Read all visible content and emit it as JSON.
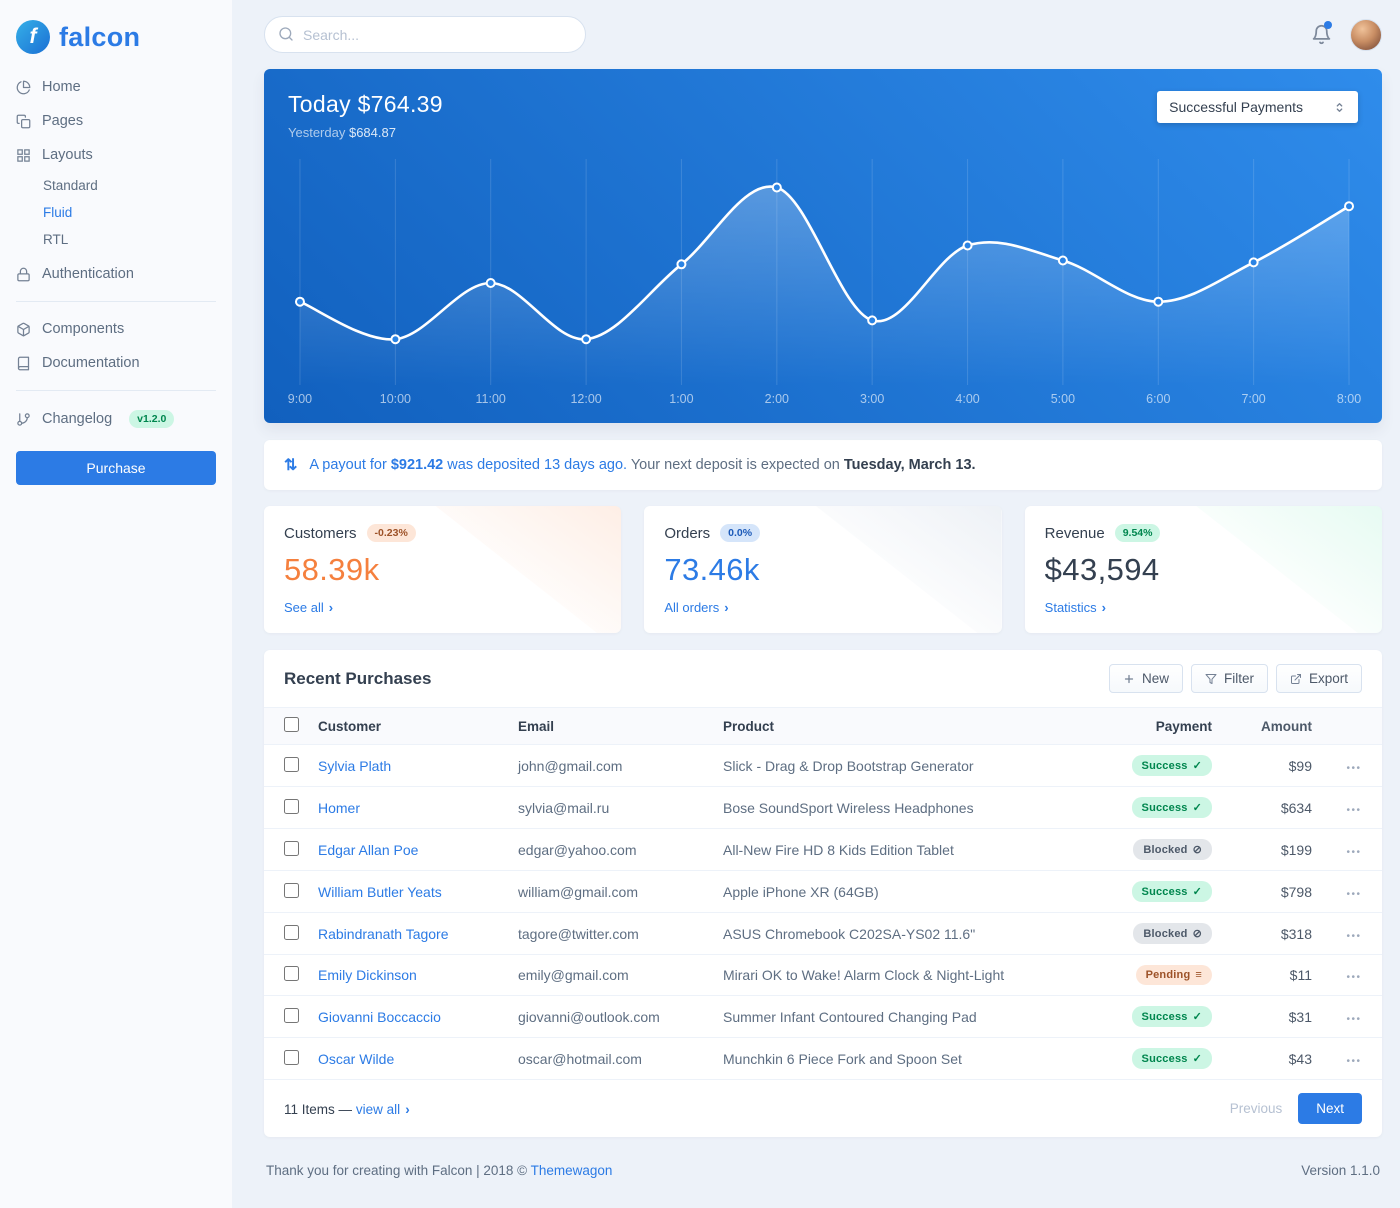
{
  "brand": {
    "name": "falcon",
    "logo_letter": "f",
    "primary_color": "#2c7be5"
  },
  "topbar": {
    "search_placeholder": "Search..."
  },
  "icons": {
    "chevron_right": "›"
  },
  "sidebar": {
    "items": [
      {
        "label": "Home",
        "icon": "pie-chart-icon"
      },
      {
        "label": "Pages",
        "icon": "copy-icon"
      },
      {
        "label": "Layouts",
        "icon": "grid-icon",
        "children": [
          "Standard",
          "Fluid",
          "RTL"
        ],
        "active_child": "Fluid"
      },
      {
        "label": "Authentication",
        "icon": "lock-icon"
      },
      {
        "label": "Components",
        "icon": "box-icon"
      },
      {
        "label": "Documentation",
        "icon": "book-icon"
      },
      {
        "label": "Changelog",
        "icon": "git-branch-icon",
        "badge": "v1.2.0"
      }
    ],
    "purchase_label": "Purchase"
  },
  "chart": {
    "today_label": "Today",
    "today_amount": "$764.39",
    "yesterday_label": "Yesterday",
    "yesterday_amount": "$684.87",
    "select_value": "Successful Payments"
  },
  "chart_data": {
    "type": "line",
    "title": "Today $764.39",
    "subtitle": "Yesterday $684.87",
    "x": [
      "9:00",
      "10:00",
      "11:00",
      "12:00",
      "1:00",
      "2:00",
      "3:00",
      "4:00",
      "5:00",
      "6:00",
      "7:00",
      "8:00"
    ],
    "values": [
      37,
      17,
      47,
      17,
      57,
      98,
      27,
      67,
      59,
      37,
      58,
      88
    ],
    "ylim": [
      0,
      110
    ],
    "grid": "vertical",
    "line_color": "#ffffff",
    "bg_gradient": [
      "#1160be",
      "#2f8ceb"
    ],
    "legend": "none"
  },
  "alert": {
    "icon": "transfer-icon",
    "icon_glyph": "⇅",
    "link_prefix": "A payout for ",
    "amount": "$921.42",
    "link_suffix": " was deposited 13 days ago.",
    "text": " Your next deposit is expected on ",
    "date": "Tuesday, March 13."
  },
  "stats": [
    {
      "title": "Customers",
      "badge": "-0.23%",
      "value": "58.39k",
      "link": "See all",
      "accent": "#f5803e",
      "badge_bg": "#fde6d8",
      "badge_color": "#9d5228"
    },
    {
      "title": "Orders",
      "badge": "0.0%",
      "value": "73.46k",
      "link": "All orders",
      "accent": "#2c7be5",
      "badge_bg": "#d5e5fa",
      "badge_color": "#1c5ab8"
    },
    {
      "title": "Revenue",
      "badge": "9.54%",
      "value": "$43,594",
      "link": "Statistics",
      "accent": "#344050",
      "badge_bg": "#ccf6e4",
      "badge_color": "#00864e"
    }
  ],
  "purchases": {
    "title": "Recent Purchases",
    "buttons": {
      "new": "New",
      "filter": "Filter",
      "export": "Export"
    },
    "columns": [
      "Customer",
      "Email",
      "Product",
      "Payment",
      "Amount"
    ],
    "actions_glyph": "•••",
    "rows": [
      {
        "customer": "Sylvia Plath",
        "email": "john@gmail.com",
        "product": "Slick - Drag & Drop Bootstrap Generator",
        "status": {
          "label": "Success",
          "type": "success",
          "icon": "check-icon",
          "glyph": "✓"
        },
        "amount": "$99"
      },
      {
        "customer": "Homer",
        "email": "sylvia@mail.ru",
        "product": "Bose SoundSport Wireless Headphones",
        "status": {
          "label": "Success",
          "type": "success",
          "icon": "check-icon",
          "glyph": "✓"
        },
        "amount": "$634"
      },
      {
        "customer": "Edgar Allan Poe",
        "email": "edgar@yahoo.com",
        "product": "All-New Fire HD 8 Kids Edition Tablet",
        "status": {
          "label": "Blocked",
          "type": "blocked",
          "icon": "ban-icon",
          "glyph": "⊘"
        },
        "amount": "$199"
      },
      {
        "customer": "William Butler Yeats",
        "email": "william@gmail.com",
        "product": "Apple iPhone XR (64GB)",
        "status": {
          "label": "Success",
          "type": "success",
          "icon": "check-icon",
          "glyph": "✓"
        },
        "amount": "$798"
      },
      {
        "customer": "Rabindranath Tagore",
        "email": "tagore@twitter.com",
        "product": "ASUS Chromebook C202SA-YS02 11.6\"",
        "status": {
          "label": "Blocked",
          "type": "blocked",
          "icon": "ban-icon",
          "glyph": "⊘"
        },
        "amount": "$318"
      },
      {
        "customer": "Emily Dickinson",
        "email": "emily@gmail.com",
        "product": "Mirari OK to Wake! Alarm Clock & Night-Light",
        "status": {
          "label": "Pending",
          "type": "pending",
          "icon": "stream-icon",
          "glyph": "≡"
        },
        "amount": "$11"
      },
      {
        "customer": "Giovanni Boccaccio",
        "email": "giovanni@outlook.com",
        "product": "Summer Infant Contoured Changing Pad",
        "status": {
          "label": "Success",
          "type": "success",
          "icon": "check-icon",
          "glyph": "✓"
        },
        "amount": "$31"
      },
      {
        "customer": "Oscar Wilde",
        "email": "oscar@hotmail.com",
        "product": "Munchkin 6 Piece Fork and Spoon Set",
        "status": {
          "label": "Success",
          "type": "success",
          "icon": "check-icon",
          "glyph": "✓"
        },
        "amount": "$43"
      }
    ],
    "footer": {
      "items_text": "11 Items —",
      "view_all": "view all",
      "previous": "Previous",
      "next": "Next"
    }
  },
  "footer": {
    "thanks_text": "Thank you for creating with Falcon | 2018 © ",
    "link": "Themewagon",
    "version": "Version 1.1.0"
  }
}
